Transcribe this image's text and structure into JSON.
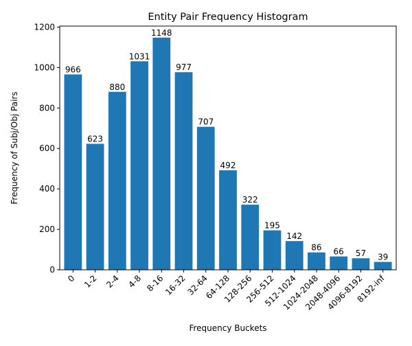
{
  "chart_data": {
    "type": "bar",
    "title": "Entity Pair Frequency Histogram",
    "xlabel": "Frequency Buckets",
    "ylabel": "Frequency of Subj/Obj Pairs",
    "categories": [
      "0",
      "1-2",
      "2-4",
      "4-8",
      "8-16",
      "16-32",
      "32-64",
      "64-128",
      "128-256",
      "256-512",
      "512-1024",
      "1024-2048",
      "2048-4096",
      "4096-8192",
      "8192-inf"
    ],
    "values": [
      966,
      623,
      880,
      1031,
      1148,
      977,
      707,
      492,
      322,
      195,
      142,
      86,
      66,
      57,
      39
    ],
    "data_labels": [
      "966",
      "623",
      "880",
      "1031",
      "1148",
      "977",
      "707",
      "492",
      "322",
      "195",
      "142",
      "86",
      "66",
      "57",
      "39"
    ],
    "ylim": [
      0,
      1205
    ],
    "yticks": [
      0,
      200,
      400,
      600,
      800,
      1000,
      1200
    ],
    "ytick_labels": [
      "0",
      "200",
      "400",
      "600",
      "800",
      "1000",
      "1200"
    ],
    "grid": false,
    "legend": "none",
    "bar_color": "#1f77b4"
  }
}
